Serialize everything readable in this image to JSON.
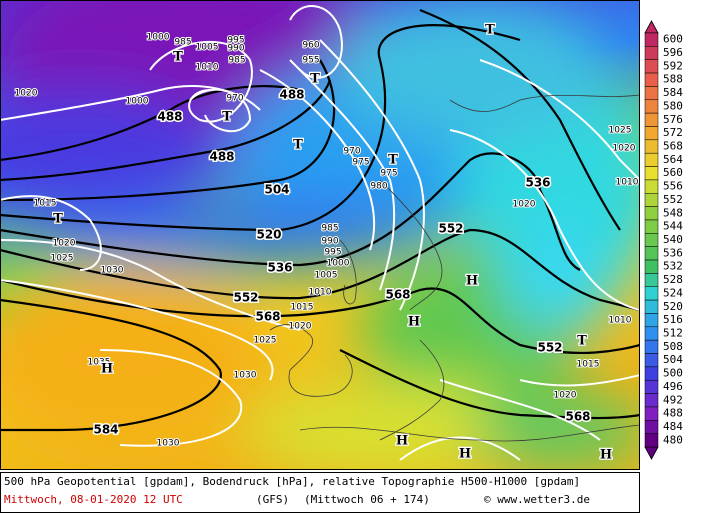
{
  "map": {
    "geopotential_labels": [
      488,
      488,
      488,
      504,
      520,
      536,
      552,
      568,
      584,
      552,
      536,
      568,
      552,
      568
    ],
    "pressure_labels": [
      1000,
      985,
      1005,
      995,
      990,
      985,
      1010,
      1020,
      1000,
      970,
      960,
      955,
      970,
      975,
      975,
      980,
      1025,
      1020,
      1010,
      1020,
      1015,
      1020,
      1025,
      1030,
      985,
      990,
      995,
      1000,
      1005,
      1010,
      1015,
      1020,
      1025,
      1035,
      1030,
      1030,
      1015,
      1020,
      1010
    ],
    "centers": [
      "T",
      "T",
      "T",
      "T",
      "T",
      "T",
      "T",
      "H",
      "H",
      "H",
      "H",
      "H",
      "H",
      "T"
    ]
  },
  "colorbar": {
    "ticks": [
      600,
      596,
      592,
      588,
      584,
      580,
      576,
      572,
      568,
      564,
      560,
      556,
      552,
      548,
      544,
      540,
      536,
      532,
      528,
      524,
      520,
      516,
      512,
      508,
      504,
      500,
      496,
      492,
      488,
      484,
      480
    ]
  },
  "footer": {
    "description": "500 hPa Geopotential [gpdam], Bodendruck [hPa], relative Topographie H500-H1000 [gpdam]",
    "valid_time": "Mittwoch, 08-01-2020  12 UTC",
    "model": "(GFS)",
    "run": "(Mittwoch 06 + 174)",
    "copyright": "© www.wetter3.de"
  }
}
